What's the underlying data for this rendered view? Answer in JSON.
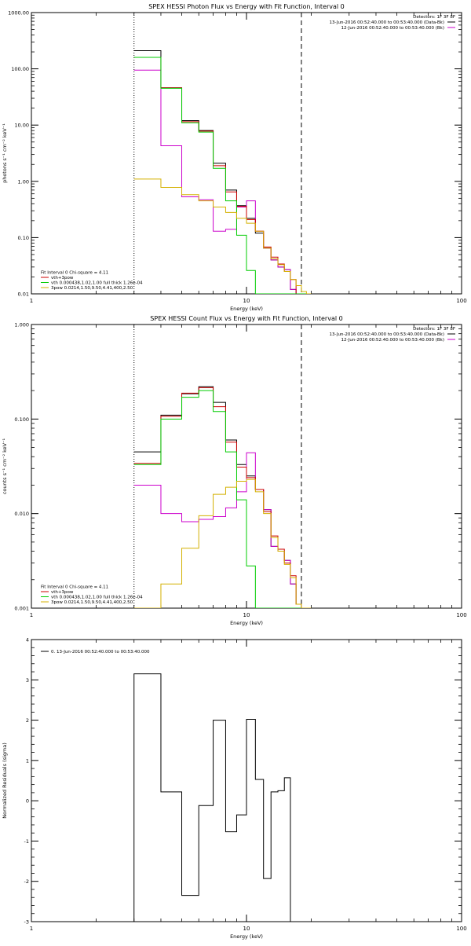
{
  "colors": {
    "total": "#000000",
    "vth": "#00cc00",
    "3pow": "#d4b000",
    "vth3pow": "#cc0000",
    "bk": "#cc00cc"
  },
  "chart_data": [
    {
      "type": "line",
      "title": "SPEX HESSI Photon Flux vs Energy with Fit Function, Interval 0",
      "xlabel": "Energy (keV)",
      "ylabel": "photons s⁻¹ cm⁻² keV⁻¹",
      "xscale": "log",
      "yscale": "log",
      "xlim": [
        1,
        100
      ],
      "ylim": [
        0.01,
        1000
      ],
      "xticks": [
        {
          "v": 1,
          "label": "1"
        },
        {
          "v": 10,
          "label": "10"
        },
        {
          "v": 100,
          "label": "100"
        }
      ],
      "yticks": [
        {
          "v": 0.01,
          "label": "0.01"
        },
        {
          "v": 0.1,
          "label": "0.10"
        },
        {
          "v": 1,
          "label": "1.00"
        },
        {
          "v": 10,
          "label": "10.00"
        },
        {
          "v": 100,
          "label": "100.00"
        },
        {
          "v": 1000,
          "label": "1000.00"
        }
      ],
      "vlines": [
        {
          "x": 3,
          "style": "dotted"
        },
        {
          "x": 18,
          "style": "dashed"
        }
      ],
      "legend_top": [
        "Detectors: 1F 3F 8F",
        "13-Jun-2016 00:52:40.000 to 00:53:40.000 (Data-Bk)",
        "12-Jun-2016 00:52:40.000 to 00:53:40.000 (Bk)"
      ],
      "legend_bottom": [
        "Fit Interval 0   Chi-square = 4.11",
        "vth+3pow",
        "vth 0.000438,1.02,1.00  full thick 1.26e-04",
        "3pow 0.0214,1.50,9.50,4.41,400,2.50"
      ],
      "edges": [
        3,
        4,
        5,
        6,
        7,
        8,
        9,
        10,
        11,
        12,
        13,
        14,
        15,
        16,
        17,
        18,
        19,
        20
      ],
      "series": [
        {
          "name": "13-Jun-2016 00:52:40.000 to 00:53:40.000 (Data-Bk)",
          "color": "#000000",
          "values": [
            210,
            46,
            12,
            8,
            2.1,
            0.7,
            0.37,
            0.22,
            0.12,
            0.065,
            0.04,
            0.03,
            0.027,
            0.012,
            0.01,
            0.01,
            0.01
          ]
        },
        {
          "name": "12-Jun-2016 00:52:40.000 to 00:53:40.000 (Bk)",
          "color": "#cc00cc",
          "values": [
            95,
            4.3,
            0.53,
            0.47,
            0.13,
            0.14,
            0.35,
            0.45,
            0.13,
            0.065,
            0.04,
            0.03,
            0.027,
            0.012,
            0.01,
            0.01,
            0.01
          ]
        },
        {
          "name": "vth+3pow",
          "color": "#cc0000",
          "values": [
            160,
            46,
            11.5,
            7.8,
            1.9,
            0.65,
            0.36,
            0.21,
            0.13,
            0.068,
            0.045,
            0.034,
            0.025,
            0.018,
            0.01,
            0.01,
            0.01
          ]
        },
        {
          "name": "vth",
          "color": "#00cc00",
          "values": [
            160,
            45,
            11,
            7.5,
            1.7,
            0.45,
            0.11,
            0.026,
            0.01,
            0.01,
            0.01,
            0.01,
            0.01,
            0.01,
            0.01,
            0.01,
            0.01
          ]
        },
        {
          "name": "3pow",
          "color": "#d4b000",
          "values": [
            1.1,
            0.78,
            0.58,
            0.45,
            0.35,
            0.28,
            0.22,
            0.18,
            0.13,
            0.065,
            0.042,
            0.033,
            0.025,
            0.018,
            0.014,
            0.011,
            0.01
          ]
        }
      ]
    },
    {
      "type": "line",
      "title": "SPEX HESSI Count Flux vs Energy with Fit Function, Interval 0",
      "xlabel": "Energy (keV)",
      "ylabel": "counts s⁻¹ cm⁻² keV⁻¹",
      "xscale": "log",
      "yscale": "log",
      "xlim": [
        1,
        100
      ],
      "ylim": [
        0.001,
        1
      ],
      "xticks": [
        {
          "v": 1,
          "label": "1"
        },
        {
          "v": 10,
          "label": "10"
        },
        {
          "v": 100,
          "label": "100"
        }
      ],
      "yticks": [
        {
          "v": 0.001,
          "label": "0.001"
        },
        {
          "v": 0.01,
          "label": "0.010"
        },
        {
          "v": 0.1,
          "label": "0.100"
        },
        {
          "v": 1,
          "label": "1.000"
        }
      ],
      "vlines": [
        {
          "x": 3,
          "style": "dotted"
        },
        {
          "x": 18,
          "style": "dashed"
        }
      ],
      "legend_top": [
        "Detectors: 1F 3F 8F",
        "13-Jun-2016 00:52:40.000 to 00:53:40.000 (Data-Bk)",
        "12-Jun-2016 00:52:40.000 to 00:53:40.000 (Bk)"
      ],
      "legend_bottom": [
        "Fit Interval 0   Chi-square = 4.11",
        "vth+3pow",
        "vth 0.000438,1.02,1.00  full thick 1.26e-04",
        "3pow 0.0214,1.50,9.50,4.41,400,2.50"
      ],
      "edges": [
        3,
        4,
        5,
        6,
        7,
        8,
        9,
        10,
        11,
        12,
        13,
        14,
        15,
        16,
        17,
        18,
        19,
        20
      ],
      "series": [
        {
          "name": "13-Jun-2016 00:52:40.000 to 00:53:40.000 (Data-Bk)",
          "color": "#000000",
          "values": [
            0.045,
            0.11,
            0.185,
            0.22,
            0.15,
            0.06,
            0.033,
            0.025,
            0.018,
            0.011,
            0.0045,
            0.004,
            0.0032,
            0.0018,
            0.0011,
            0.001,
            0.001
          ]
        },
        {
          "name": "12-Jun-2016 00:52:40.000 to 00:53:40.000 (Bk)",
          "color": "#cc00cc",
          "values": [
            0.02,
            0.01,
            0.0082,
            0.0087,
            0.0093,
            0.0115,
            0.017,
            0.044,
            0.018,
            0.011,
            0.0045,
            0.004,
            0.0032,
            0.0018,
            0.0011,
            0.001,
            0.001
          ]
        },
        {
          "name": "vth+3pow",
          "color": "#cc0000",
          "values": [
            0.034,
            0.107,
            0.188,
            0.215,
            0.135,
            0.057,
            0.031,
            0.024,
            0.018,
            0.0105,
            0.0058,
            0.0042,
            0.003,
            0.0022,
            0.0011,
            0.001,
            0.001
          ]
        },
        {
          "name": "vth",
          "color": "#00cc00",
          "values": [
            0.033,
            0.1,
            0.17,
            0.2,
            0.12,
            0.045,
            0.014,
            0.0028,
            0.001,
            0.001,
            0.001,
            0.001,
            0.001,
            0.001,
            0.001,
            0.001,
            0.001
          ]
        },
        {
          "name": "3pow",
          "color": "#d4b000",
          "values": [
            0.001,
            0.0018,
            0.0043,
            0.0095,
            0.016,
            0.019,
            0.022,
            0.023,
            0.017,
            0.01,
            0.0056,
            0.004,
            0.0029,
            0.0021,
            0.0011,
            0.001,
            0.001
          ]
        }
      ]
    },
    {
      "type": "line",
      "title": "",
      "xlabel": "Energy (keV)",
      "ylabel": "Normalized Residuals (sigma)",
      "xscale": "log",
      "yscale": "linear",
      "xlim": [
        1,
        100
      ],
      "ylim": [
        -3,
        4
      ],
      "xticks": [
        {
          "v": 1,
          "label": "1"
        },
        {
          "v": 10,
          "label": "10"
        },
        {
          "v": 100,
          "label": "100"
        }
      ],
      "yticks": [
        {
          "v": -3,
          "label": "-3"
        },
        {
          "v": -2,
          "label": "-2"
        },
        {
          "v": -1,
          "label": "-1"
        },
        {
          "v": 0,
          "label": "0"
        },
        {
          "v": 1,
          "label": "1"
        },
        {
          "v": 2,
          "label": "2"
        },
        {
          "v": 3,
          "label": "3"
        },
        {
          "v": 4,
          "label": "4"
        }
      ],
      "legend": [
        "0. 13-Jun-2016 00:52:40.000 to 00:53:40.000"
      ],
      "edges": [
        3,
        4,
        5,
        6,
        7,
        8,
        9,
        10,
        11,
        12,
        13,
        14,
        15,
        16,
        17,
        18
      ],
      "series": [
        {
          "name": "0. 13-Jun-2016 00:52:40.000 to 00:53:40.000",
          "color": "#000000",
          "values": [
            3.15,
            0.22,
            -2.35,
            -0.12,
            2.0,
            -0.77,
            -0.35,
            2.02,
            0.53,
            -1.93,
            0.22,
            0.25,
            0.57,
            -3,
            -3
          ]
        }
      ]
    }
  ]
}
